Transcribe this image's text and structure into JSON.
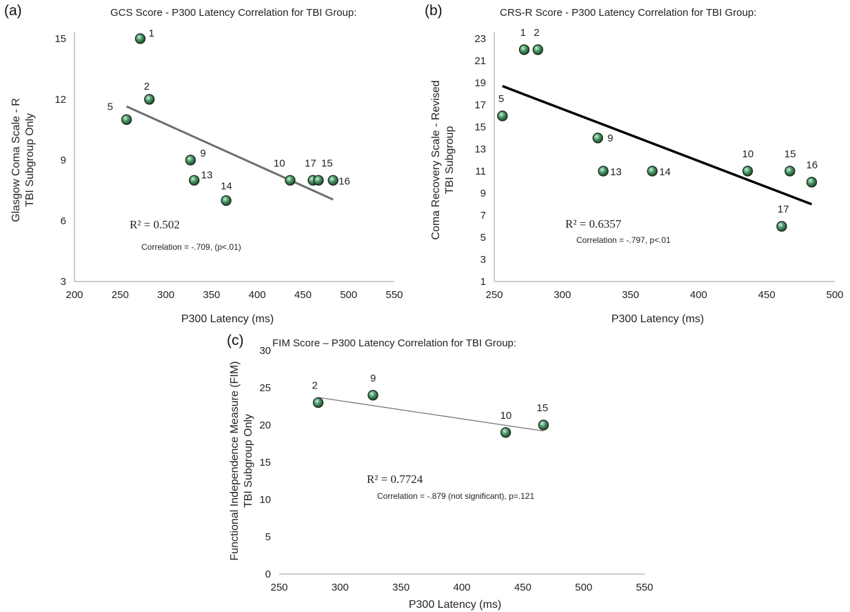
{
  "chart_data": [
    {
      "type": "scatter",
      "panel_label": "(a)",
      "title": "GCS Score - P300 Latency Correlation for TBI Group:",
      "xlabel": "P300 Latency (ms)",
      "ylabel_line1": "Glasgow Coma Scale - R",
      "ylabel_line2": "TBI Subgroup Only",
      "xlim": [
        200,
        550
      ],
      "ylim": [
        3,
        15
      ],
      "xticks": [
        "200",
        "250",
        "300",
        "350",
        "400",
        "450",
        "500",
        "550"
      ],
      "yticks": [
        "3",
        "6",
        "9",
        "12",
        "15"
      ],
      "points": [
        {
          "label": "1",
          "x": 272,
          "y": 15
        },
        {
          "label": "2",
          "x": 282,
          "y": 12
        },
        {
          "label": "5",
          "x": 257,
          "y": 11
        },
        {
          "label": "9",
          "x": 327,
          "y": 9
        },
        {
          "label": "13",
          "x": 331,
          "y": 8
        },
        {
          "label": "14",
          "x": 366,
          "y": 7
        },
        {
          "label": "10",
          "x": 436,
          "y": 8
        },
        {
          "label": "17",
          "x": 461,
          "y": 8
        },
        {
          "label": "15",
          "x": 467,
          "y": 8
        },
        {
          "label": "16",
          "x": 483,
          "y": 8
        }
      ],
      "trendline": {
        "x1": 257,
        "y1": 11.65,
        "x2": 483,
        "y2": 7.05,
        "color": "#6e6e6e",
        "width": 3
      },
      "r_squared": "R² = 0.502",
      "correlation": "Correlation = -.709, (p<.01)"
    },
    {
      "type": "scatter",
      "panel_label": "(b)",
      "title": "CRS-R Score - P300 Latency Correlation for TBI Group:",
      "xlabel": "P300 Latency (ms)",
      "ylabel_line1": "Coma Recovery Scale - Revised",
      "ylabel_line2": "TBI Subgroup",
      "xlim": [
        250,
        500
      ],
      "ylim": [
        1,
        23
      ],
      "xticks": [
        "250",
        "300",
        "350",
        "400",
        "450",
        "500"
      ],
      "yticks": [
        "1",
        "3",
        "5",
        "7",
        "9",
        "11",
        "13",
        "15",
        "17",
        "19",
        "21",
        "23"
      ],
      "points": [
        {
          "label": "1",
          "x": 272,
          "y": 22
        },
        {
          "label": "2",
          "x": 282,
          "y": 22
        },
        {
          "label": "5",
          "x": 256,
          "y": 16
        },
        {
          "label": "9",
          "x": 326,
          "y": 14
        },
        {
          "label": "13",
          "x": 330,
          "y": 11
        },
        {
          "label": "14",
          "x": 366,
          "y": 11
        },
        {
          "label": "10",
          "x": 436,
          "y": 11
        },
        {
          "label": "15",
          "x": 467,
          "y": 11
        },
        {
          "label": "16",
          "x": 483,
          "y": 10
        },
        {
          "label": "17",
          "x": 461,
          "y": 6
        }
      ],
      "trendline": {
        "x1": 256,
        "y1": 18.7,
        "x2": 483,
        "y2": 8.0,
        "color": "#000000",
        "width": 3.5
      },
      "r_squared": "R² = 0.6357",
      "correlation": "Correlation = -.797, p<.01"
    },
    {
      "type": "scatter",
      "panel_label": "(c)",
      "title": "FIM Score – P300 Latency Correlation for TBI Group:",
      "xlabel": "P300 Latency (ms)",
      "ylabel_line1": "Functional Independence Measure (FIM)",
      "ylabel_line2": "TBI Subgroup Only",
      "xlim": [
        250,
        550
      ],
      "ylim": [
        0,
        30
      ],
      "xticks": [
        "250",
        "300",
        "350",
        "400",
        "450",
        "500",
        "550"
      ],
      "yticks": [
        "0",
        "5",
        "10",
        "15",
        "20",
        "25",
        "30"
      ],
      "points": [
        {
          "label": "2",
          "x": 282,
          "y": 23
        },
        {
          "label": "9",
          "x": 327,
          "y": 24
        },
        {
          "label": "10",
          "x": 436,
          "y": 19
        },
        {
          "label": "15",
          "x": 467,
          "y": 20
        }
      ],
      "trendline": {
        "x1": 282,
        "y1": 23.7,
        "x2": 467,
        "y2": 19.2,
        "color": "#777777",
        "width": 1.3
      },
      "r_squared": "R² = 0.7724",
      "correlation": "Correlation = -.879 (not significant), p=.121"
    }
  ],
  "style": {
    "marker_fill_light": "#cfe8d8",
    "marker_fill_mid": "#4f9c6b",
    "marker_fill_dark": "#1e4a2c",
    "axis_color": "#9a9a9a"
  }
}
